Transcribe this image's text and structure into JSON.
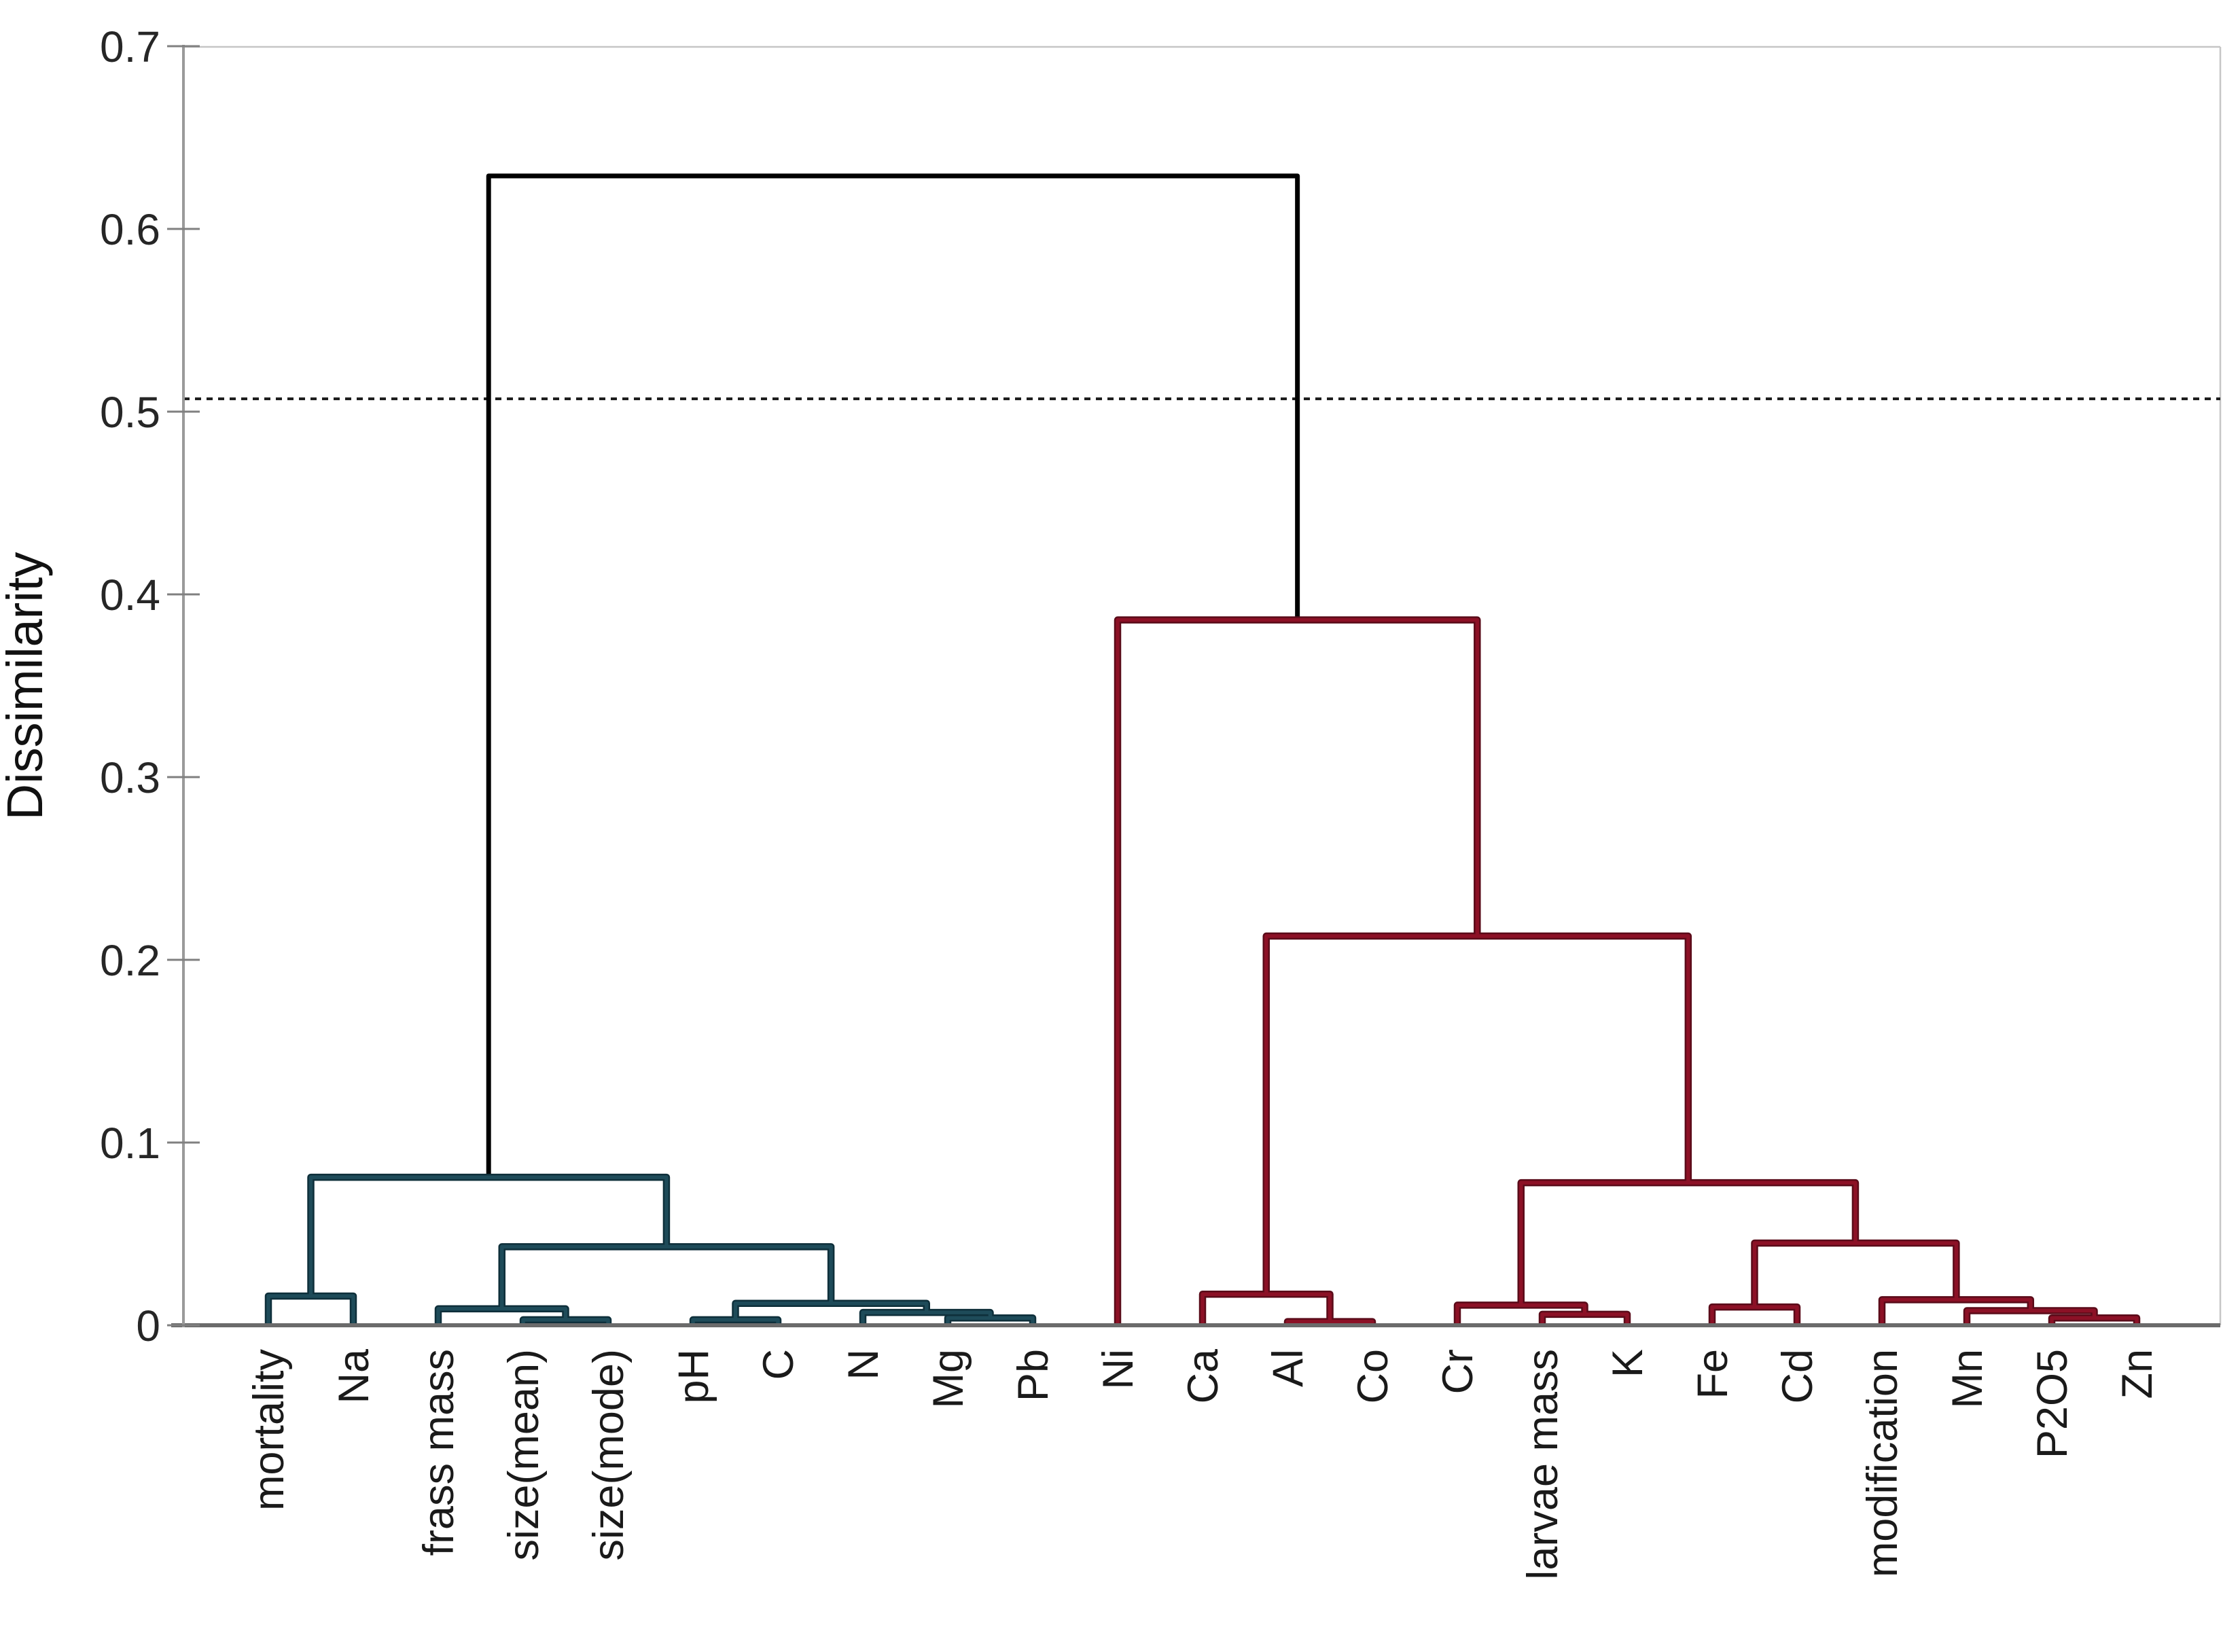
{
  "figure": {
    "background": "#ffffff"
  },
  "chart_data": {
    "type": "dendrogram",
    "title": "",
    "ylabel": "Dissimilarity",
    "xlabel": "",
    "ylim": [
      0,
      0.7
    ],
    "yticks": [
      0,
      0.1,
      0.2,
      0.3,
      0.4,
      0.5,
      0.6,
      0.7
    ],
    "ytick_labels": [
      "0",
      "0.1",
      "0.2",
      "0.3",
      "0.4",
      "0.5",
      "0.6",
      "0.7"
    ],
    "grid": false,
    "legend": "none",
    "threshold_line": {
      "value": 0.507,
      "style": "dotted",
      "color": "#1a1a1a"
    },
    "leaves": [
      "mortality",
      "Na",
      "frass mass",
      "size(mean)",
      "size(mode)",
      "pH",
      "C",
      "N",
      "Mg",
      "Pb",
      "Ni",
      "Ca",
      "Al",
      "Co",
      "Cr",
      "larvae mass",
      "K",
      "Fe",
      "Cd",
      "modification",
      "Mn",
      "P2O5",
      "Zn"
    ],
    "colors": {
      "left_cluster": {
        "main": "#1e4b59",
        "edge": "#0e2f3a"
      },
      "right_cluster": {
        "main": "#8c1126",
        "edge": "#5a0b19"
      },
      "root": "#000000"
    },
    "root_height": 0.629,
    "tree": {
      "h": 0.629,
      "cluster": "root",
      "children": [
        {
          "h": 0.081,
          "cluster": "left",
          "children": [
            {
              "h": 0.016,
              "cluster": "left",
              "children": [
                {
                  "leaf": "mortality"
                },
                {
                  "leaf": "Na"
                }
              ]
            },
            {
              "h": 0.043,
              "cluster": "left",
              "children": [
                {
                  "h": 0.009,
                  "cluster": "left",
                  "children": [
                    {
                      "leaf": "frass mass"
                    },
                    {
                      "h": 0.003,
                      "cluster": "left",
                      "children": [
                        {
                          "leaf": "size(mean)"
                        },
                        {
                          "leaf": "size(mode)"
                        }
                      ]
                    }
                  ]
                },
                {
                  "h": 0.012,
                  "cluster": "left",
                  "children": [
                    {
                      "h": 0.003,
                      "cluster": "left",
                      "children": [
                        {
                          "leaf": "pH"
                        },
                        {
                          "leaf": "C"
                        }
                      ]
                    },
                    {
                      "h": 0.007,
                      "cluster": "left",
                      "children": [
                        {
                          "leaf": "N"
                        },
                        {
                          "h": 0.004,
                          "cluster": "left",
                          "children": [
                            {
                              "leaf": "Mg"
                            },
                            {
                              "leaf": "Pb"
                            }
                          ]
                        }
                      ]
                    }
                  ]
                }
              ]
            }
          ]
        },
        {
          "h": 0.386,
          "cluster": "right",
          "children": [
            {
              "leaf": "Ni"
            },
            {
              "h": 0.213,
              "cluster": "right",
              "children": [
                {
                  "h": 0.017,
                  "cluster": "right",
                  "children": [
                    {
                      "leaf": "Ca"
                    },
                    {
                      "h": 0.002,
                      "cluster": "right",
                      "children": [
                        {
                          "leaf": "Al"
                        },
                        {
                          "leaf": "Co"
                        }
                      ]
                    }
                  ]
                },
                {
                  "h": 0.078,
                  "cluster": "right",
                  "children": [
                    {
                      "h": 0.011,
                      "cluster": "right",
                      "children": [
                        {
                          "leaf": "Cr"
                        },
                        {
                          "h": 0.006,
                          "cluster": "right",
                          "children": [
                            {
                              "leaf": "larvae mass"
                            },
                            {
                              "leaf": "K"
                            }
                          ]
                        }
                      ]
                    },
                    {
                      "h": 0.045,
                      "cluster": "right",
                      "children": [
                        {
                          "h": 0.01,
                          "cluster": "right",
                          "children": [
                            {
                              "leaf": "Fe"
                            },
                            {
                              "leaf": "Cd"
                            }
                          ]
                        },
                        {
                          "h": 0.014,
                          "cluster": "right",
                          "children": [
                            {
                              "leaf": "modification"
                            },
                            {
                              "h": 0.008,
                              "cluster": "right",
                              "children": [
                                {
                                  "leaf": "Mn"
                                },
                                {
                                  "h": 0.004,
                                  "cluster": "right",
                                  "children": [
                                    {
                                      "leaf": "P2O5"
                                    },
                                    {
                                      "leaf": "Zn"
                                    }
                                  ]
                                }
                              ]
                            }
                          ]
                        }
                      ]
                    }
                  ]
                }
              ]
            }
          ]
        }
      ]
    }
  }
}
